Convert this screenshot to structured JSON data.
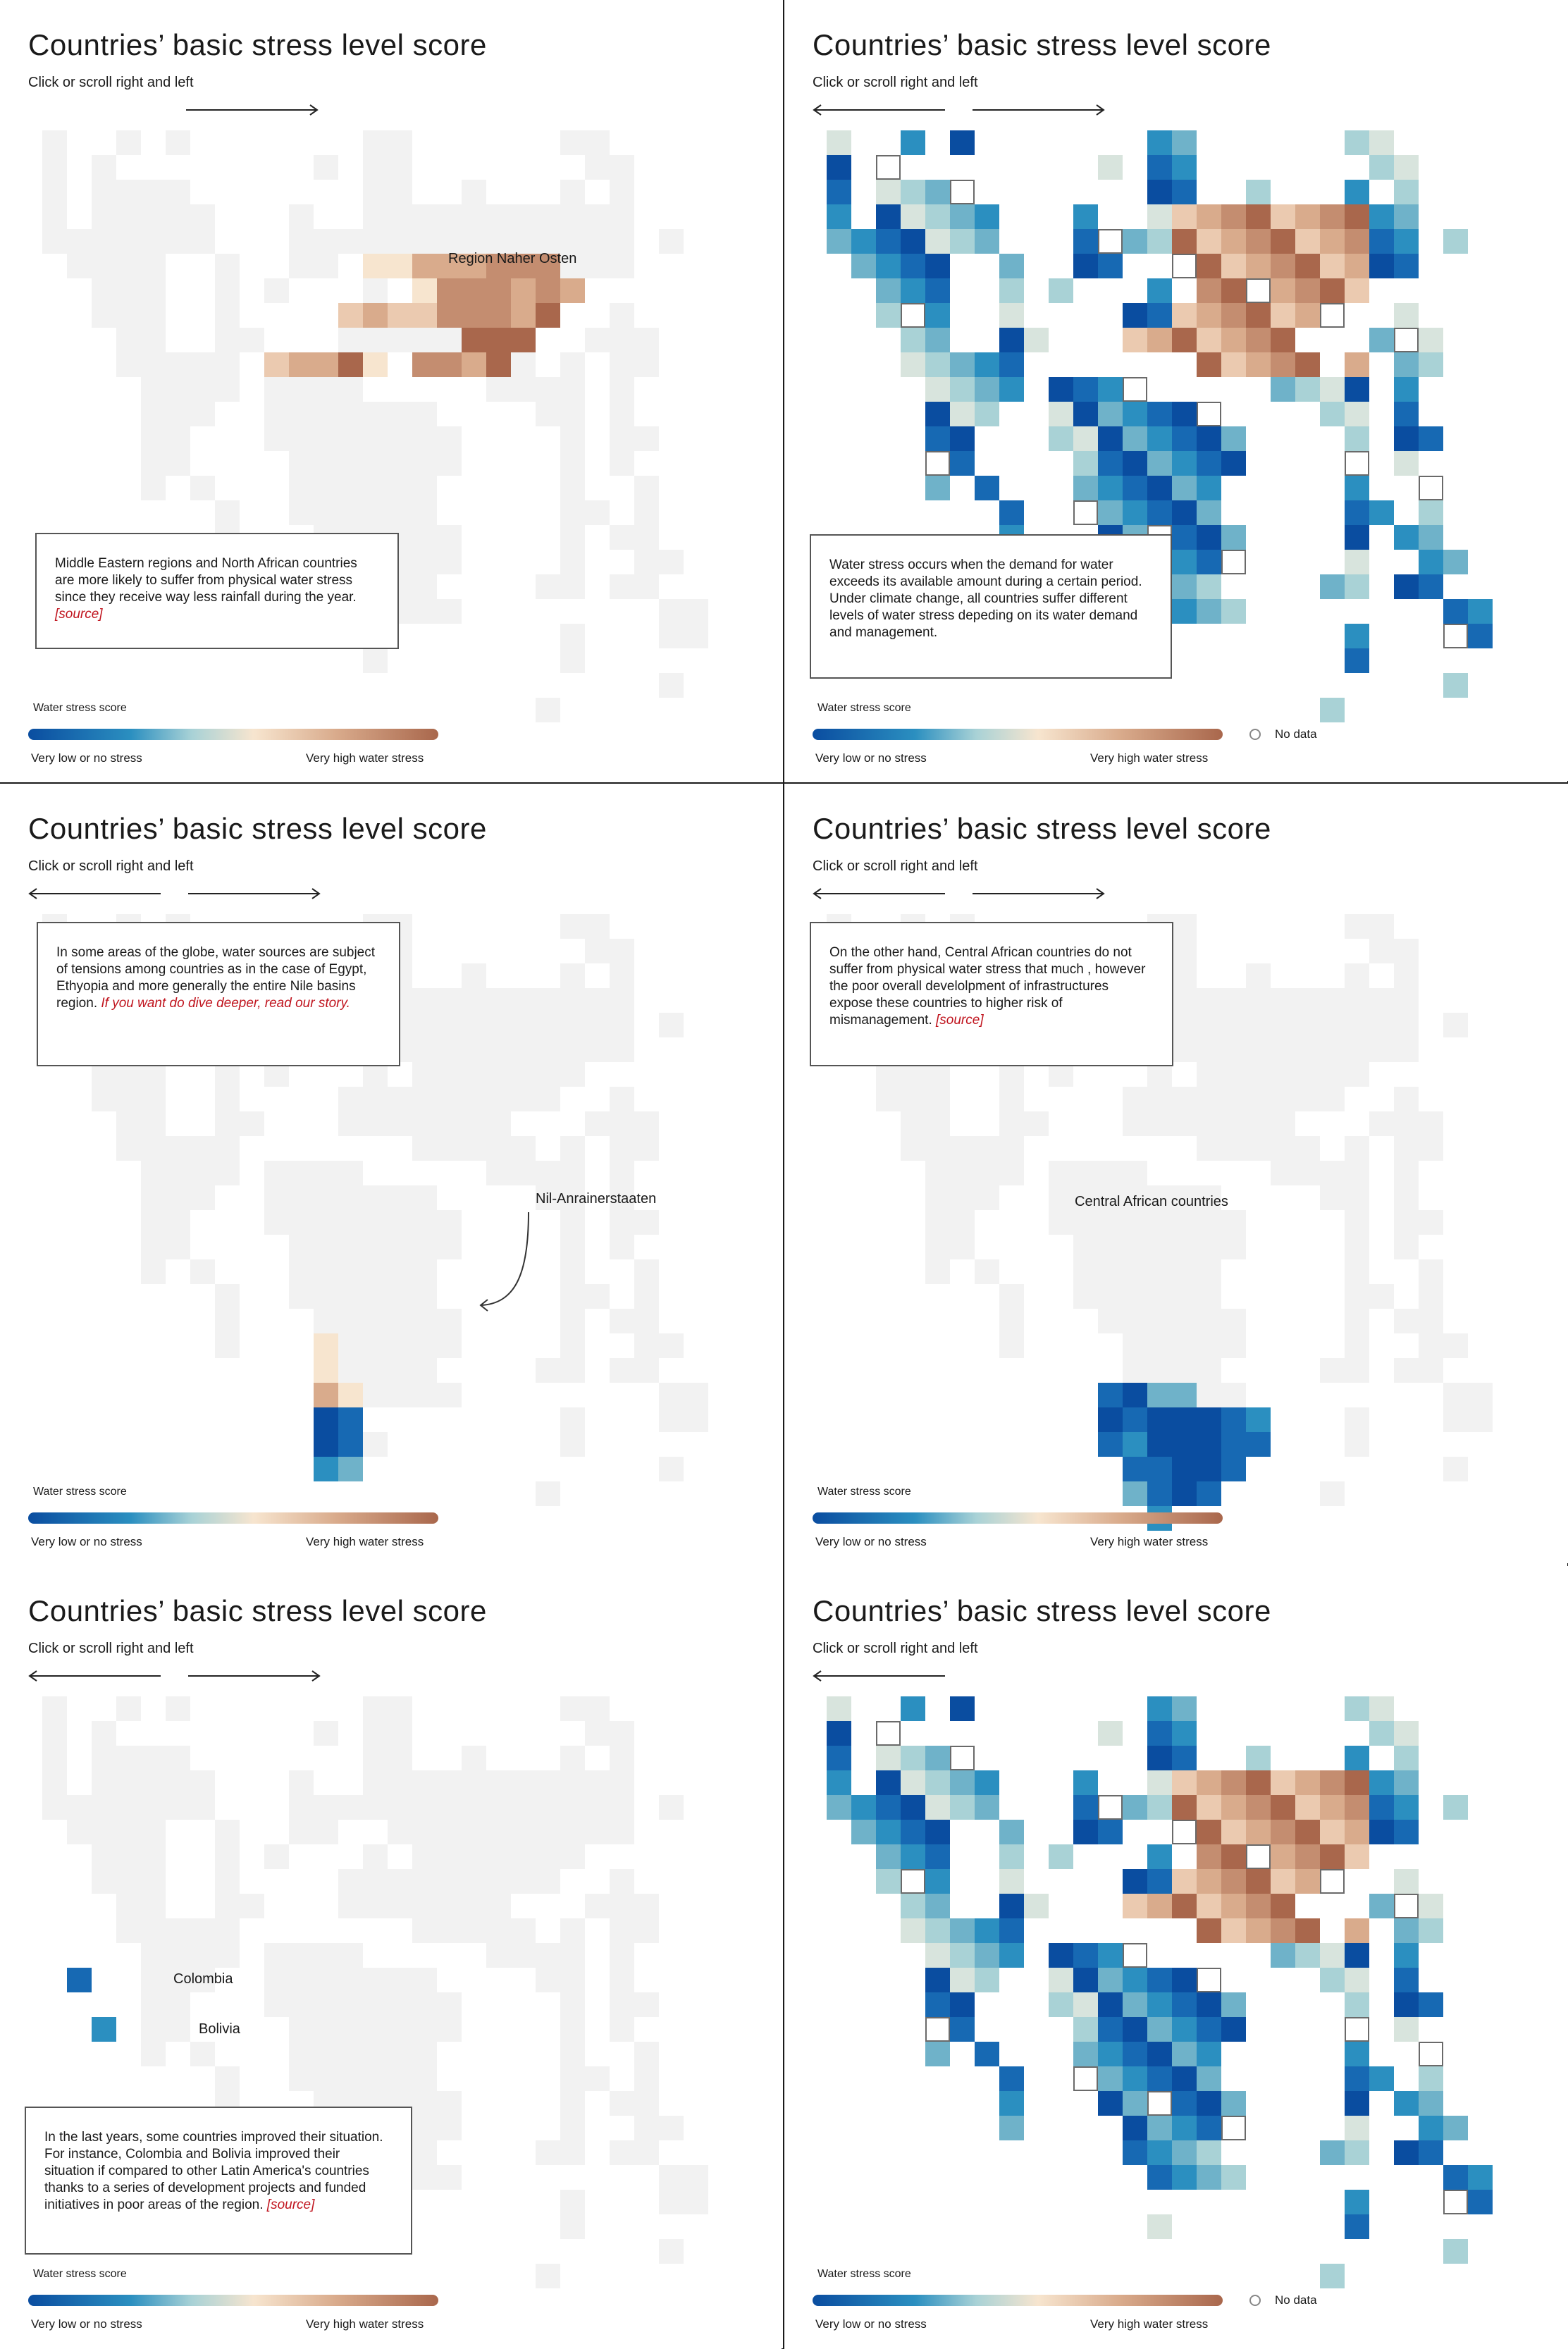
{
  "panels": [
    {
      "title": "Countries’ basic stress level score",
      "hint": "Click or scroll right and left",
      "arrows": "right",
      "highlight": "mideast",
      "label": "Region Naher Osten",
      "callout": {
        "text": "Middle Eastern regions and North African countries are more likely to suffer from physical water stress since they receive way less rainfall during the year.",
        "source": "[source]"
      },
      "legend": {
        "title": "Water stress score",
        "low": "Very low or no stress",
        "high": "Very high water stress",
        "nodata": ""
      }
    },
    {
      "title": "Countries’ basic stress level score",
      "hint": "Click or scroll right and left",
      "arrows": "both",
      "highlight": "all",
      "label": "",
      "callout": {
        "text": "Water stress occurs when the demand for water exceeds its available amount during a certain period. Under climate change, all countries suffer different levels of water stress depeding on its water demand and management.",
        "source": ""
      },
      "legend": {
        "title": "Water stress score",
        "low": "Very low or no stress",
        "high": "Very high water stress",
        "nodata": "No data"
      }
    },
    {
      "title": "Countries’ basic stress level score",
      "hint": "Click or scroll right and left",
      "arrows": "both",
      "highlight": "nile",
      "label": "Nil-Anrainerstaaten",
      "callout": {
        "text": "In some areas of the globe, water sources are subject of tensions among countries as in the case of Egypt, Ethyopia and more generally the entire Nile basins region.",
        "source": "If you want do dive deeper, read our story."
      },
      "legend": {
        "title": "Water stress score",
        "low": "Very low or no stress",
        "high": "Very high water stress",
        "nodata": ""
      }
    },
    {
      "title": "Countries’ basic stress level score",
      "hint": "Click or scroll right and left",
      "arrows": "both",
      "highlight": "central_africa",
      "label": "Central African countries",
      "callout": {
        "text": "On the other hand, Central African countries do not suffer from physical water stress that much , however the poor overall develolpment of infrastructures expose these countries to higher risk of  mismanagement.",
        "source": "[source]"
      },
      "legend": {
        "title": "Water stress score",
        "low": "Very low or no stress",
        "high": "Very high water stress",
        "nodata": ""
      }
    },
    {
      "title": "Countries’ basic stress level score",
      "hint": "Click or scroll right and left",
      "arrows": "both",
      "highlight": "latam",
      "label": "",
      "labels_extra": [
        "Colombia",
        "Bolivia"
      ],
      "callout": {
        "text": "In the last years, some countries improved their situation. For instance, Colombia and Bolivia improved their situation if compared to other Latin America's countries thanks to a series of development projects and funded initiatives in poor areas of the region.",
        "source": "[source]"
      },
      "legend": {
        "title": "Water stress score",
        "low": "Very low or no stress",
        "high": "Very high water stress",
        "nodata": ""
      }
    },
    {
      "title": "Countries’ basic stress level score",
      "hint": "Click or scroll right and left",
      "arrows": "left",
      "highlight": "all",
      "label": "",
      "callout": {
        "text": "",
        "source": ""
      },
      "legend": {
        "title": "Water stress score",
        "low": "Very low or no stress",
        "high": "Very high water stress",
        "nodata": "No data"
      }
    }
  ],
  "colors": {
    "palette": [
      "#0a4da0",
      "#1769b3",
      "#2b8fc0",
      "#6fb2c9",
      "#a9d2d6",
      "#d8e4dd",
      "#f7e5cf",
      "#ebcab0",
      "#d9ab8c",
      "#c48d70",
      "#a9674c"
    ],
    "background_cell": "#f2f2f2",
    "source_link": "#c0141e"
  }
}
